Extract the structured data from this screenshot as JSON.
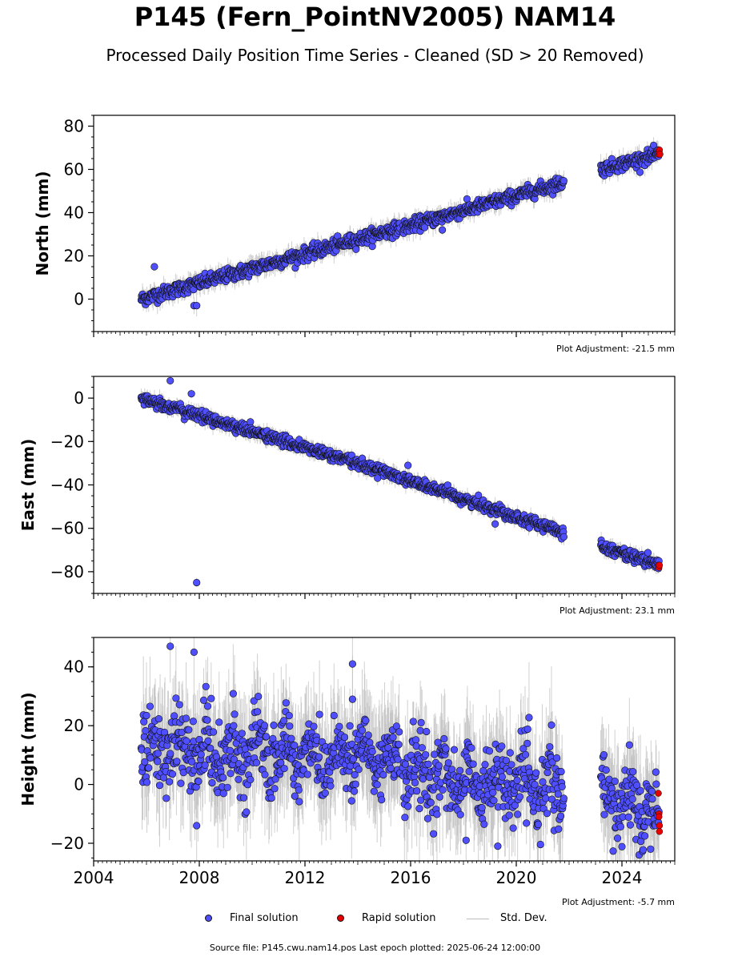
{
  "title": "P145 (Fern_PointNV2005) NAM14",
  "subtitle": "Processed Daily Position Time Series - Cleaned (SD > 20 Removed)",
  "source_note": "Source file: P145.cwu.nam14.pos  Last epoch plotted: 2025-06-24 12:00:00",
  "legend": {
    "final": "Final solution",
    "rapid": "Rapid solution",
    "std": "Std. Dev."
  },
  "colors": {
    "final": "#4f4fff",
    "rapid": "#e60000",
    "std": "#bdbdbd",
    "marker_edge": "#111111"
  },
  "chart_data": [
    {
      "type": "scatter",
      "ylabel": "North (mm)",
      "adjustment": "Plot Adjustment: -21.5 mm",
      "xlim": [
        2004.0,
        2026.0
      ],
      "ylim": [
        -15,
        85
      ],
      "yticks": [
        0,
        20,
        40,
        60,
        80
      ],
      "yticklabels": [
        "0",
        "20",
        "40",
        "60",
        "80"
      ],
      "trend_segments": [
        {
          "x": [
            2005.8,
            2015.6
          ],
          "y": [
            0,
            33
          ]
        },
        {
          "x": [
            2015.7,
            2021.8
          ],
          "y": [
            33,
            54
          ]
        },
        {
          "x": [
            2023.2,
            2025.4
          ],
          "y": [
            60,
            67
          ]
        }
      ],
      "noise_sd": 1.5,
      "outliers": [
        {
          "x": 2006.3,
          "y": 15
        },
        {
          "x": 2007.8,
          "y": -3
        },
        {
          "x": 2007.9,
          "y": -3
        },
        {
          "x": 2017.2,
          "y": 32
        }
      ],
      "rapid": {
        "x": [
          2025.38,
          2025.4,
          2025.42,
          2025.44
        ],
        "y": [
          67,
          68,
          69,
          67
        ]
      }
    },
    {
      "type": "scatter",
      "ylabel": "East (mm)",
      "adjustment": "Plot Adjustment: 23.1 mm",
      "xlim": [
        2004.0,
        2026.0
      ],
      "ylim": [
        -90,
        10
      ],
      "yticks": [
        -80,
        -60,
        -40,
        -20,
        0
      ],
      "yticklabels": [
        "−80",
        "−60",
        "−40",
        "−20",
        "0"
      ],
      "trend_segments": [
        {
          "x": [
            2005.8,
            2015.6
          ],
          "y": [
            0,
            -36
          ]
        },
        {
          "x": [
            2015.7,
            2021.8
          ],
          "y": [
            -37,
            -62
          ]
        },
        {
          "x": [
            2023.2,
            2025.4
          ],
          "y": [
            -68,
            -77
          ]
        }
      ],
      "noise_sd": 1.2,
      "outliers": [
        {
          "x": 2007.9,
          "y": -85
        },
        {
          "x": 2006.9,
          "y": 8
        },
        {
          "x": 2007.7,
          "y": 2
        },
        {
          "x": 2015.9,
          "y": -31
        },
        {
          "x": 2019.2,
          "y": -58
        }
      ],
      "rapid": {
        "x": [
          2025.38,
          2025.4,
          2025.42
        ],
        "y": [
          -77,
          -78,
          -77
        ]
      }
    },
    {
      "type": "scatter",
      "ylabel": "Height (mm)",
      "adjustment": "Plot Adjustment: -5.7 mm",
      "xlim": [
        2004.0,
        2026.0
      ],
      "ylim": [
        -26,
        50
      ],
      "yticks": [
        -20,
        0,
        20,
        40
      ],
      "yticklabels": [
        "−20",
        "0",
        "20",
        "40"
      ],
      "trend_segments": [
        {
          "x": [
            2005.8,
            2015.6
          ],
          "y": [
            12,
            9
          ]
        },
        {
          "x": [
            2015.7,
            2021.8
          ],
          "y": [
            4,
            -2
          ]
        },
        {
          "x": [
            2023.2,
            2025.4
          ],
          "y": [
            -5,
            -8
          ]
        }
      ],
      "noise_sd": 6,
      "outliers": [
        {
          "x": 2006.9,
          "y": 47
        },
        {
          "x": 2007.8,
          "y": 45
        },
        {
          "x": 2013.8,
          "y": 41
        },
        {
          "x": 2013.8,
          "y": 29
        },
        {
          "x": 2007.9,
          "y": -14
        },
        {
          "x": 2019.3,
          "y": -21
        },
        {
          "x": 2018.1,
          "y": -19
        }
      ],
      "rapid": {
        "x": [
          2025.38,
          2025.4,
          2025.4,
          2025.42,
          2025.42
        ],
        "y": [
          -3,
          -10,
          -11,
          -14,
          -16
        ]
      }
    }
  ],
  "xticks": [
    2004,
    2008,
    2012,
    2016,
    2020,
    2024
  ],
  "xticklabels": [
    "2004",
    "2008",
    "2012",
    "2016",
    "2020",
    "2024"
  ]
}
